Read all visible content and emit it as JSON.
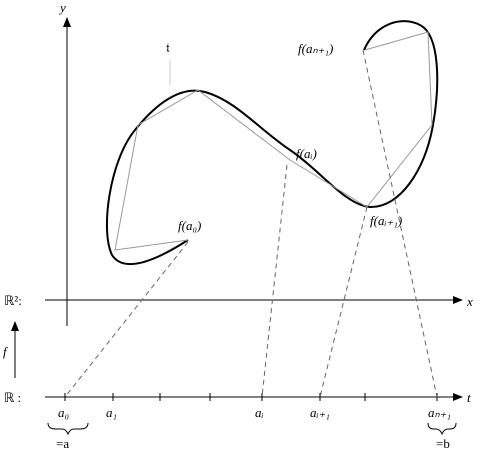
{
  "labels": {
    "y": "y",
    "glyph": "𝔱",
    "f_an1": "f(aₙ₊₁)",
    "f_ai": "f(aᵢ)",
    "f_a0": "f(a₀)",
    "f_ai1": "f(aᵢ₊₁)",
    "r2": "ℝ²:",
    "x": "x",
    "f": "f",
    "r": "ℝ :",
    "t": "t",
    "a0": "a₀",
    "a1": "a₁",
    "ai": "aᵢ",
    "ai1": "aᵢ₊₁",
    "an1": "aₙ₊₁",
    "eq_a": "=a",
    "eq_b": "=b"
  }
}
